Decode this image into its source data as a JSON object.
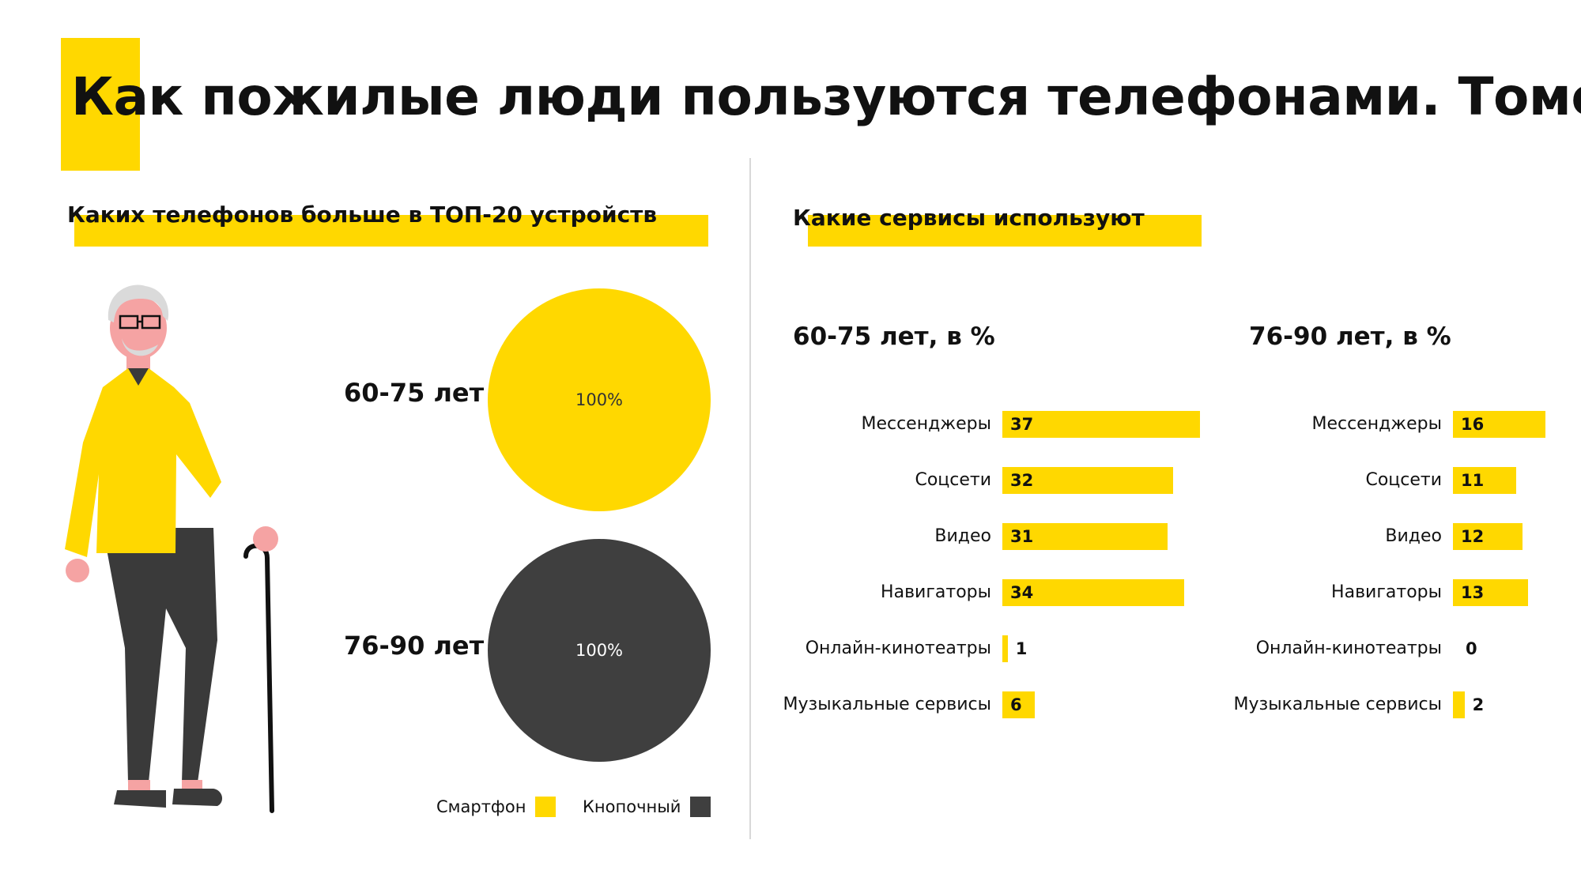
{
  "title": "Как пожилые люди пользуются телефонами. Томск",
  "left": {
    "heading": "Каких телефонов больше в ТОП-20 устройств",
    "groups": [
      {
        "label": "60-75 лет",
        "value_label": "100%",
        "color": "#FFD800",
        "text_color": "#333333"
      },
      {
        "label": "76-90 лет",
        "value_label": "100%",
        "color": "#3F3F3F",
        "text_color": "#ffffff"
      }
    ],
    "legend": [
      {
        "label": "Смартфон",
        "color": "#FFD800"
      },
      {
        "label": "Кнопочный",
        "color": "#3F3F3F"
      }
    ]
  },
  "right": {
    "heading": "Какие сервисы используют"
  },
  "chart_data": [
    {
      "type": "pie",
      "title": "60-75 лет",
      "categories": [
        "Смартфон",
        "Кнопочный"
      ],
      "values": [
        100,
        0
      ]
    },
    {
      "type": "pie",
      "title": "76-90 лет",
      "categories": [
        "Смартфон",
        "Кнопочный"
      ],
      "values": [
        0,
        100
      ]
    },
    {
      "type": "bar",
      "orientation": "horizontal",
      "title": "60-75 лет, в %",
      "categories": [
        "Мессенджеры",
        "Соцсети",
        "Видео",
        "Навигаторы",
        "Онлайн-кинотеатры",
        "Музыкальные сервисы"
      ],
      "values": [
        37,
        32,
        31,
        34,
        1,
        6
      ]
    },
    {
      "type": "bar",
      "orientation": "horizontal",
      "title": "76-90 лет, в %",
      "categories": [
        "Мессенджеры",
        "Соцсети",
        "Видео",
        "Навигаторы",
        "Онлайн-кинотеатры",
        "Музыкальные сервисы"
      ],
      "values": [
        16,
        11,
        12,
        13,
        0,
        2
      ]
    }
  ],
  "colors": {
    "accent": "#FFD800",
    "dark": "#3F3F3F",
    "figure_skin": "#F5A3A3",
    "figure_hair": "#DADADA"
  }
}
